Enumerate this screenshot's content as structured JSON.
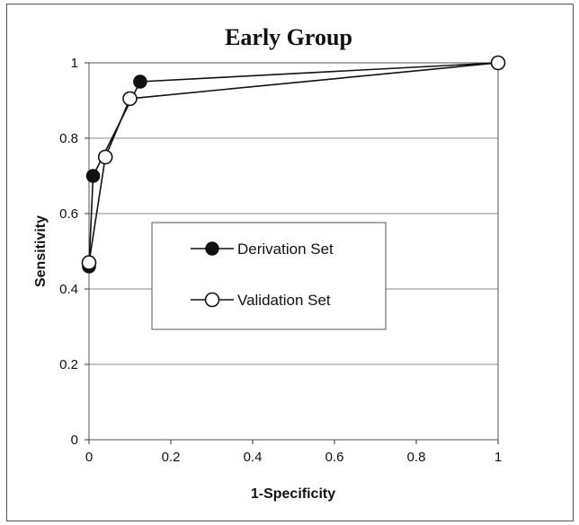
{
  "chart_data": {
    "type": "line",
    "title": "Early Group",
    "xlabel": "1-Specificity",
    "ylabel": "Sensitivity",
    "xlim": [
      0,
      1
    ],
    "ylim": [
      0,
      1
    ],
    "x_ticks": [
      "0",
      "0.2",
      "0.4",
      "0.6",
      "0.8",
      "1"
    ],
    "y_ticks": [
      "0",
      "0.2",
      "0.4",
      "0.6",
      "0.8",
      "1"
    ],
    "grid": "horizontal",
    "legend": "inside-center",
    "series": [
      {
        "name": "Derivation Set",
        "marker": "filled-circle",
        "x": [
          0,
          0.01,
          0.125,
          1
        ],
        "y": [
          0.46,
          0.7,
          0.95,
          1.0
        ]
      },
      {
        "name": "Validation Set",
        "marker": "open-circle",
        "x": [
          0,
          0.04,
          0.1,
          1
        ],
        "y": [
          0.47,
          0.75,
          0.905,
          1.0
        ]
      }
    ]
  }
}
